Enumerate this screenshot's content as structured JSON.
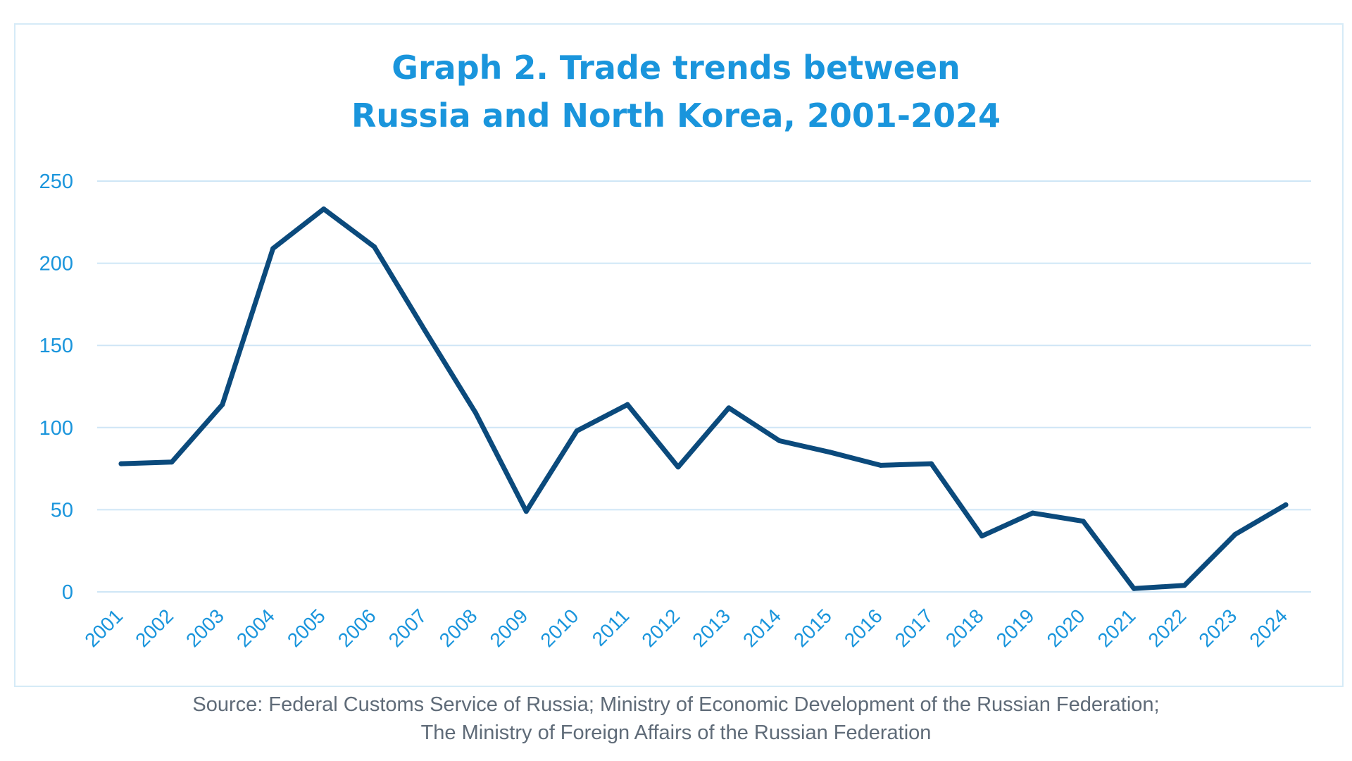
{
  "title_lines": [
    "Graph 2. Trade trends between",
    "Russia and North Korea, 2001-2024"
  ],
  "source_lines": [
    "Source: Federal Customs Service of Russia; Ministry of Economic Development of the Russian Federation;",
    "The Ministry of Foreign Affairs of the Russian Federation"
  ],
  "colors": {
    "title": "#1a95dc",
    "line": "#0b4a7c",
    "grid": "#cfe6f6",
    "tick": "#1a95dc",
    "source": "#5f6b78"
  },
  "chart_data": {
    "type": "line",
    "title": "Graph 2. Trade trends between Russia and North Korea, 2001-2024",
    "xlabel": "",
    "ylabel": "",
    "grid": true,
    "legend": "none",
    "ylim": [
      0,
      250
    ],
    "yticks": [
      0,
      50,
      100,
      150,
      200,
      250
    ],
    "categories": [
      "2001",
      "2002",
      "2003",
      "2004",
      "2005",
      "2006",
      "2007",
      "2008",
      "2009",
      "2010",
      "2011",
      "2012",
      "2013",
      "2014",
      "2015",
      "2016",
      "2017",
      "2018",
      "2019",
      "2020",
      "2021",
      "2022",
      "2023",
      "2024"
    ],
    "series": [
      {
        "name": "Trade",
        "values": [
          78,
          79,
          114,
          209,
          233,
          210,
          159,
          109,
          49,
          98,
          114,
          76,
          112,
          92,
          85,
          77,
          78,
          34,
          48,
          43,
          2,
          4,
          35,
          53
        ]
      }
    ]
  }
}
